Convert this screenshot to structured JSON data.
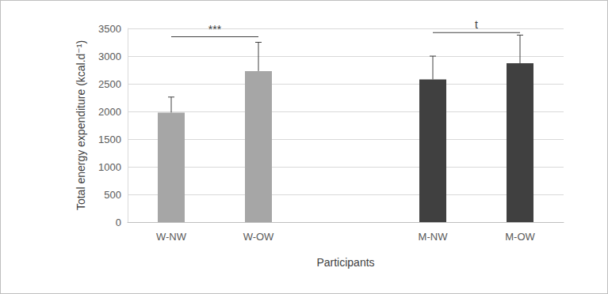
{
  "chart_data": {
    "type": "bar",
    "categories": [
      "W-NW",
      "W-OW",
      null,
      "M-NW",
      "M-OW"
    ],
    "values": [
      1980,
      2730,
      null,
      2580,
      2870
    ],
    "errors": [
      280,
      520,
      null,
      420,
      510
    ],
    "colors": [
      "#a6a6a6",
      "#a6a6a6",
      null,
      "#404040",
      "#404040"
    ],
    "x_label": "Participants",
    "y_label": "Total energy expenditure (kcal.d⁻¹)",
    "ylim": [
      0,
      3500
    ],
    "yticks": [
      0,
      500,
      1000,
      1500,
      2000,
      2500,
      3000,
      3500
    ],
    "grid": true,
    "annotations": [
      {
        "text": "***",
        "from": "W-NW",
        "to": "W-OW",
        "y": 3350
      },
      {
        "text": "t",
        "from": "M-NW",
        "to": "M-OW",
        "y": 3425
      }
    ]
  }
}
